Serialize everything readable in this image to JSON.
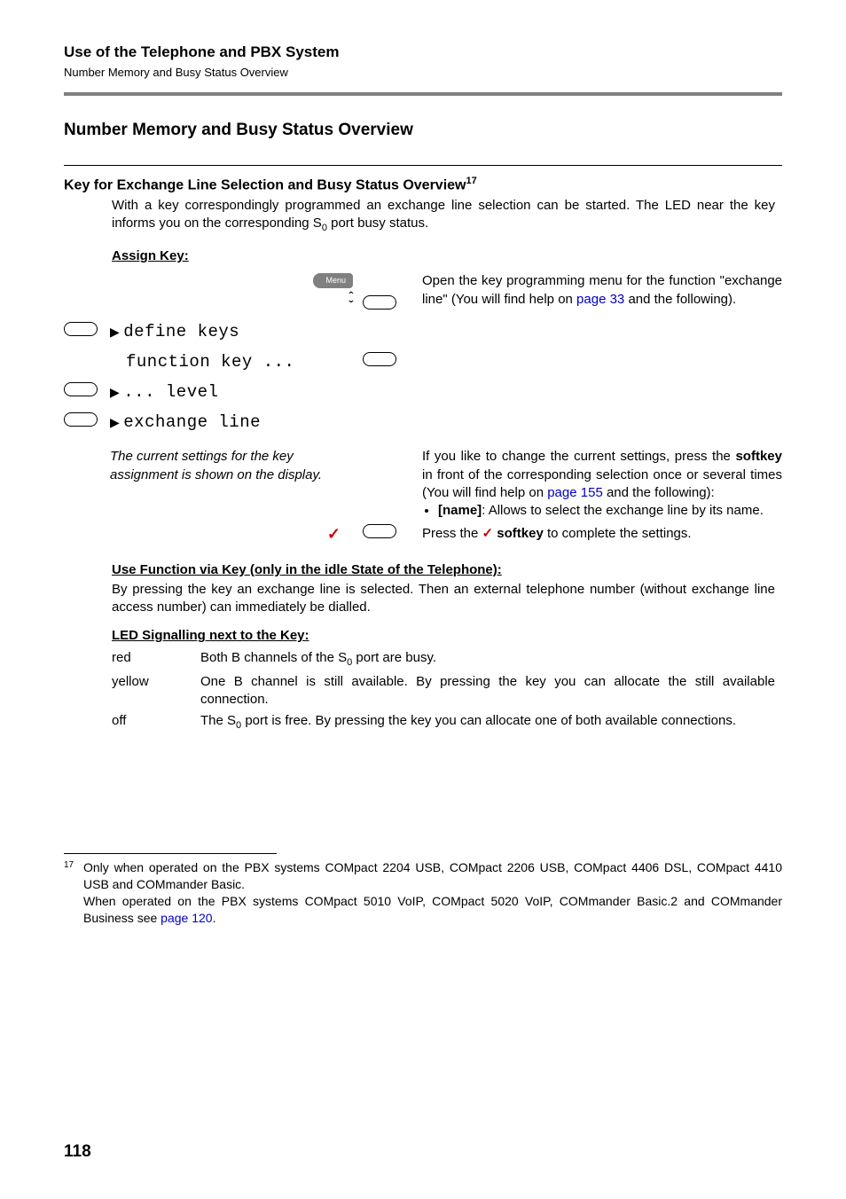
{
  "colors": {
    "rule_gray": "#808080",
    "link_blue": "#0000c8",
    "check_red": "#cc0000",
    "menu_pill_bg": "#808080",
    "menu_pill_text": "#ffffff",
    "text": "#000000",
    "background": "#ffffff"
  },
  "fonts": {
    "body_family": "Arial, Helvetica, sans-serif",
    "lcd_family": "Courier New, monospace",
    "body_size_pt": 11,
    "lcd_size_pt": 14,
    "h1_size_pt": 14,
    "h2_size_pt": 12
  },
  "header": {
    "title": "Use of the Telephone and PBX System",
    "subtitle": "Number Memory and Busy Status Overview"
  },
  "section": {
    "title": "Number Memory and Busy Status Overview"
  },
  "subsection": {
    "title_prefix": "Key for Exchange Line Selection and Busy Status Overview",
    "footnote_ref": "17",
    "intro_a": "With a key correspondingly programmed an exchange line selection can be started. The LED near the key informs you on the corresponding S",
    "intro_sub": "0",
    "intro_b": " port busy status."
  },
  "assign": {
    "title": "Assign Key:",
    "menu_label": "Menu",
    "arrow_up": "ˆ",
    "arrow_down": "ˇ",
    "paragraph_a": "Open the key programming menu for the function \"exchange line\" (You will find help on ",
    "paragraph_link": "page 33",
    "paragraph_b": " and the following).",
    "lcd_lines": [
      {
        "has_left_pill": true,
        "has_tri": true,
        "text": "define keys",
        "has_right_pill": false
      },
      {
        "has_left_pill": false,
        "has_tri": false,
        "text": "function key ...",
        "has_right_pill": true
      },
      {
        "has_left_pill": true,
        "has_tri": true,
        "text": "... level",
        "has_right_pill": false
      },
      {
        "has_left_pill": true,
        "has_tri": true,
        "text": "exchange line",
        "has_right_pill": false
      }
    ],
    "settings_note": "The current settings for the key assignment is shown on the display.",
    "change_para_a": "If you like to change the current settings, press the ",
    "change_softkey": "softkey",
    "change_para_b": " in front of the corresponding selection once or several times (You will find help on ",
    "change_link": "page 155",
    "change_para_c": " and the following):",
    "bullet_name_bold": "[name]",
    "bullet_name_rest": ": Allows to select the exchange line by its name.",
    "press_a": "Press the ",
    "press_check": "✓",
    "press_softkey": " softkey",
    "press_b": " to complete the settings."
  },
  "use": {
    "title": "Use Function via Key (only in the idle State of the Telephone):",
    "para": "By pressing the key an exchange line is selected. Then an external telephone number (without exchange line access number) can immediately be dialled."
  },
  "led": {
    "title": "LED Signalling next to the Key:",
    "rows": [
      {
        "label": "red",
        "desc_a": "Both B channels of the S",
        "desc_sub": "0",
        "desc_b": " port are busy."
      },
      {
        "label": "yellow",
        "desc_a": "One B channel is still available. By pressing the key you can allocate the still available connection.",
        "desc_sub": "",
        "desc_b": ""
      },
      {
        "label": "off",
        "desc_a": "The S",
        "desc_sub": "0",
        "desc_b": " port is free. By pressing the key you can allocate one of both available connections."
      }
    ]
  },
  "footnote": {
    "ref": "17",
    "body_a": "Only when operated on the PBX systems COMpact 2204 USB, COMpact 2206 USB, COMpact 4406 DSL, COMpact 4410 USB and COMmander Basic.",
    "body_b_pre": "When operated on the PBX systems COMpact 5010 VoIP, COMpact 5020 VoIP, COMmander Basic.2 and COMmander Business see ",
    "body_b_link": "page 120",
    "body_b_post": "."
  },
  "page_number": "118"
}
